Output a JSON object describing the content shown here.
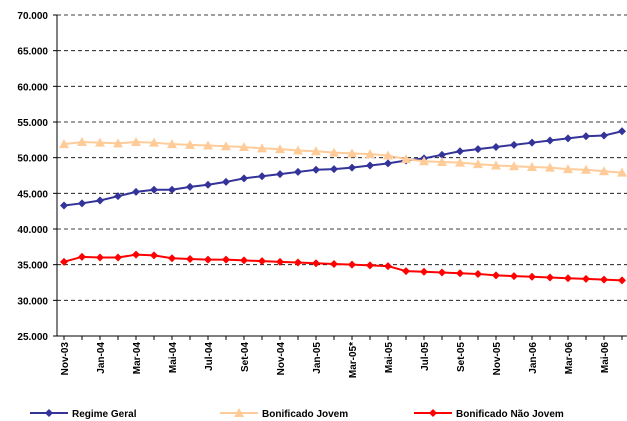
{
  "chart_data": {
    "type": "line",
    "categories": [
      "Nov-03",
      null,
      "Jan-04",
      null,
      "Mar-04",
      null,
      "Mai-04",
      null,
      "Jul-04",
      null,
      "Set-04",
      null,
      "Nov-04",
      null,
      "Jan-05",
      null,
      "Mar-05*",
      null,
      "Mai-05",
      null,
      "Jul-05",
      null,
      "Set-05",
      null,
      "Nov-05",
      null,
      "Jan-06",
      null,
      "Mar-06",
      null,
      "Mai-06",
      null
    ],
    "series": [
      {
        "name": "Regime Geral",
        "color": "#333399",
        "marker": "diamond",
        "values": [
          43300,
          43600,
          44000,
          44600,
          45200,
          45500,
          45500,
          45900,
          46200,
          46600,
          47100,
          47400,
          47700,
          48000,
          48300,
          48400,
          48600,
          48900,
          49200,
          49600,
          49900,
          50400,
          50900,
          51200,
          51500,
          51800,
          52100,
          52400,
          52700,
          53000,
          53100,
          53700
        ]
      },
      {
        "name": "Bonificado Jovem",
        "color": "#ffcc99",
        "marker": "triangle",
        "values": [
          51900,
          52200,
          52100,
          52000,
          52200,
          52100,
          51900,
          51800,
          51700,
          51600,
          51500,
          51300,
          51200,
          51000,
          50900,
          50700,
          50600,
          50500,
          50300,
          49800,
          49500,
          49400,
          49300,
          49100,
          48900,
          48800,
          48700,
          48600,
          48400,
          48300,
          48100,
          47900
        ]
      },
      {
        "name": "Bonificado Não Jovem",
        "color": "#ff0000",
        "marker": "diamond",
        "values": [
          35400,
          36100,
          36000,
          36000,
          36400,
          36300,
          35900,
          35800,
          35700,
          35700,
          35600,
          35500,
          35400,
          35300,
          35200,
          35100,
          35000,
          34900,
          34800,
          34100,
          34000,
          33900,
          33800,
          33700,
          33500,
          33400,
          33300,
          33200,
          33100,
          33000,
          32900,
          32800
        ]
      }
    ],
    "ylim": [
      25000,
      70000
    ],
    "yticks": [
      {
        "value": 25000,
        "label": "25.000"
      },
      {
        "value": 30000,
        "label": "30.000"
      },
      {
        "value": 35000,
        "label": "35.000"
      },
      {
        "value": 40000,
        "label": "40.000"
      },
      {
        "value": 45000,
        "label": "45.000"
      },
      {
        "value": 50000,
        "label": "50.000"
      },
      {
        "value": 55000,
        "label": "55.000"
      },
      {
        "value": 60000,
        "label": "60.000"
      },
      {
        "value": 65000,
        "label": "65.000"
      },
      {
        "value": 70000,
        "label": "70.000"
      }
    ],
    "grid": true,
    "legend": "bottom"
  }
}
